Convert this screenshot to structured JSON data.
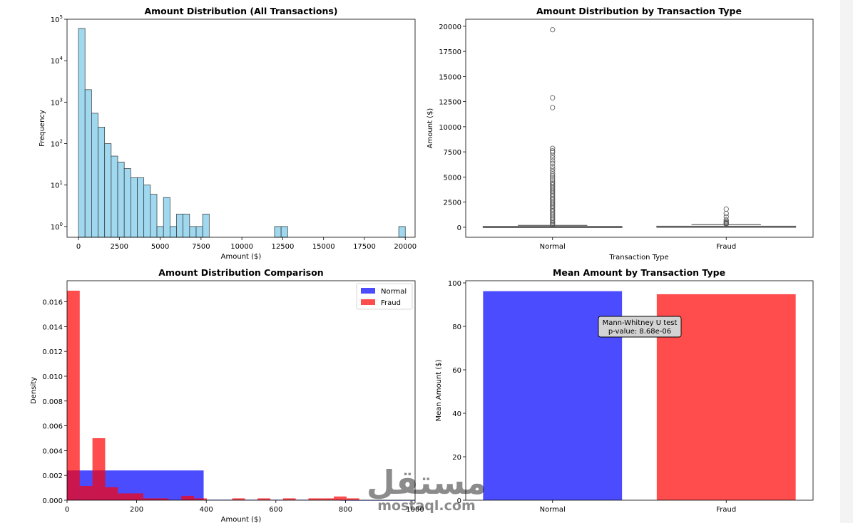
{
  "chart_data": [
    {
      "id": "p1",
      "type": "bar",
      "title": "Amount Distribution (All Transactions)",
      "xlabel": "Amount ($)",
      "ylabel": "Frequency",
      "yscale": "log",
      "xlim": [
        -700,
        20600
      ],
      "ylim": [
        0.55,
        100000
      ],
      "xticks": [
        0,
        2500,
        5000,
        7500,
        10000,
        12500,
        15000,
        17500,
        20000
      ],
      "ytick_exponents": [
        0,
        1,
        2,
        3,
        4,
        5
      ],
      "ytick_base": "10",
      "color": "#87CEEB",
      "edgecolor": "#333333",
      "bin_width": 400,
      "bin_starts": [
        0,
        400,
        800,
        1200,
        1600,
        2000,
        2400,
        2800,
        3200,
        3600,
        4000,
        4400,
        4800,
        5200,
        5600,
        6000,
        6400,
        6800,
        7200,
        7600,
        12000,
        12400,
        19600
      ],
      "counts": [
        60000,
        2000,
        540,
        250,
        100,
        50,
        36,
        25,
        15,
        15,
        10,
        6,
        1,
        5,
        1,
        2,
        2,
        1,
        1,
        2,
        1,
        1,
        1
      ]
    },
    {
      "id": "p2",
      "type": "box",
      "title": "Amount Distribution by Transaction Type",
      "xlabel": "Transaction Type",
      "ylabel": "Amount ($)",
      "ylim": [
        -1000,
        20700
      ],
      "yticks": [
        0,
        2500,
        5000,
        7500,
        10000,
        12500,
        15000,
        17500,
        20000
      ],
      "categories": [
        "Normal",
        "Fraud"
      ],
      "boxes": [
        {
          "name": "Normal",
          "whislo": 0,
          "q1": 5.6,
          "median": 22,
          "q3": 77,
          "whishi": 184,
          "outliers": [
            19660,
            12880,
            11900,
            7850,
            7600,
            7450,
            7150,
            6900,
            6600,
            6350,
            6050,
            5800,
            5550,
            5300,
            5100,
            4900,
            4700,
            4500,
            4350,
            4200,
            4050,
            3900,
            3750,
            3600,
            3450,
            3300,
            3150,
            3000,
            2850,
            2700,
            2550,
            2400,
            2250,
            2100,
            1950,
            1800,
            1650,
            1500,
            1350,
            1200,
            1050,
            900,
            750,
            600,
            450,
            300,
            220
          ]
        },
        {
          "name": "Fraud",
          "whislo": 0,
          "q1": 1,
          "median": 9,
          "q3": 106,
          "whishi": 260,
          "outliers": [
            1810,
            1360,
            1050,
            720,
            580,
            470,
            400,
            340,
            300
          ]
        }
      ]
    },
    {
      "id": "p3",
      "type": "histogram_overlay",
      "title": "Amount Distribution Comparison",
      "xlabel": "Amount ($)",
      "ylabel": "Density",
      "xlim": [
        0,
        1000
      ],
      "ylim": [
        0,
        0.0177
      ],
      "xticks": [
        0,
        200,
        400,
        600,
        800,
        1000
      ],
      "yticks": [
        0.0,
        0.002,
        0.004,
        0.006,
        0.008,
        0.01,
        0.012,
        0.014,
        0.016
      ],
      "ytick_labels": [
        "0.000",
        "0.002",
        "0.004",
        "0.006",
        "0.008",
        "0.010",
        "0.012",
        "0.014",
        "0.016"
      ],
      "series": [
        {
          "name": "Normal",
          "color": "#0000FF",
          "alpha": 0.7,
          "bin_width": 392.5,
          "bin_starts": [
            0,
            392.5,
            785
          ],
          "densities": [
            0.0024,
            4e-05,
            1e-05
          ]
        },
        {
          "name": "Fraud",
          "color": "#FF0000",
          "alpha": 0.7,
          "bin_width": 36.5,
          "bin_starts": [
            0,
            36.5,
            73,
            109.5,
            146,
            182.5,
            219,
            255.5,
            292,
            328.5,
            365,
            401.5,
            438,
            474.5,
            511,
            547.5,
            584,
            620.5,
            657,
            693.5,
            730,
            766.5,
            803
          ],
          "densities": [
            0.0169,
            0.00115,
            0.005,
            0.00105,
            0.00055,
            0.00055,
            0.00015,
            0.00015,
            0.0,
            0.00035,
            0.00015,
            0.0,
            0.0,
            0.00015,
            0.0,
            0.00015,
            0.0,
            0.00015,
            0.0,
            0.00015,
            0.00015,
            0.0003,
            0.00015
          ]
        }
      ],
      "legend": {
        "position": "top-right",
        "entries": [
          "Normal",
          "Fraud"
        ]
      }
    },
    {
      "id": "p4",
      "type": "bar",
      "title": "Mean Amount by Transaction Type",
      "xlabel": "",
      "ylabel": "Mean Amount ($)",
      "ylim": [
        0,
        101
      ],
      "yticks": [
        0,
        20,
        40,
        60,
        80,
        100
      ],
      "categories": [
        "Normal",
        "Fraud"
      ],
      "values": [
        96.2,
        94.8
      ],
      "colors": [
        "#0000FF",
        "#FF0000"
      ],
      "alpha": 0.7,
      "annotation": {
        "line1": "Mann-Whitney U test",
        "line2": "p-value: 8.68e-06"
      }
    }
  ],
  "watermark": {
    "arabic": "مستقل",
    "latin": "mostaql.com"
  }
}
